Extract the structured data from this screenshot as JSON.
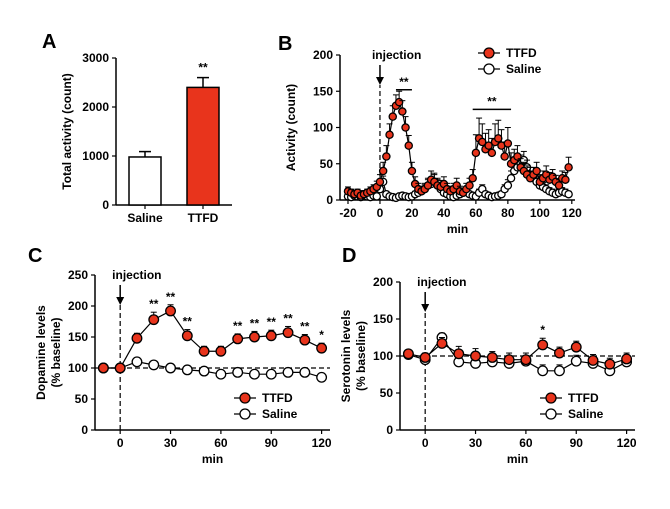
{
  "colors": {
    "ttfd": "#e8341c",
    "saline": "#ffffff",
    "stroke": "#000000"
  },
  "chart_data": [
    {
      "panel": "A",
      "type": "bar",
      "ylabel": "Total activity (count)",
      "ylim": [
        0,
        3000
      ],
      "yticks": [
        0,
        1000,
        2000,
        3000
      ],
      "categories": [
        "Saline",
        "TTFD"
      ],
      "values": [
        980,
        2400
      ],
      "errors": [
        110,
        200
      ],
      "annotations": [
        {
          "category": "TTFD",
          "text": "**"
        }
      ]
    },
    {
      "panel": "B",
      "type": "line",
      "xlabel": "min",
      "ylabel": "Activity (count)",
      "xlim": [
        -25,
        122
      ],
      "ylim": [
        0,
        200
      ],
      "xticks": [
        -20,
        0,
        20,
        40,
        60,
        80,
        100,
        120
      ],
      "yticks": [
        0,
        50,
        100,
        150,
        200
      ],
      "event": {
        "x": 0,
        "label": "injection"
      },
      "legend": {
        "position": "top-right",
        "entries": [
          "TTFD",
          "Saline"
        ]
      },
      "brackets": [
        {
          "x0": 10,
          "x1": 20,
          "y": 152,
          "text": "**"
        },
        {
          "x0": 58,
          "x1": 82,
          "y": 125,
          "text": "**"
        }
      ],
      "series": [
        {
          "name": "TTFD",
          "x": [
            -20,
            -18,
            -16,
            -14,
            -12,
            -10,
            -8,
            -6,
            -4,
            -2,
            0,
            2,
            4,
            6,
            8,
            10,
            12,
            14,
            16,
            18,
            20,
            22,
            24,
            26,
            28,
            30,
            32,
            34,
            36,
            38,
            40,
            42,
            44,
            46,
            48,
            50,
            52,
            54,
            56,
            58,
            60,
            62,
            64,
            66,
            68,
            70,
            72,
            74,
            76,
            78,
            80,
            82,
            84,
            86,
            88,
            90,
            92,
            94,
            96,
            98,
            100,
            102,
            104,
            106,
            108,
            110,
            112,
            114,
            116,
            118
          ],
          "values": [
            12,
            10,
            8,
            10,
            6,
            8,
            10,
            12,
            15,
            18,
            25,
            40,
            60,
            90,
            115,
            130,
            135,
            122,
            100,
            75,
            40,
            22,
            15,
            12,
            15,
            20,
            28,
            25,
            20,
            18,
            22,
            15,
            12,
            15,
            20,
            12,
            10,
            15,
            20,
            30,
            65,
            85,
            80,
            70,
            75,
            65,
            80,
            85,
            75,
            60,
            78,
            50,
            55,
            60,
            45,
            40,
            35,
            30,
            35,
            40,
            25,
            30,
            35,
            28,
            32,
            25,
            20,
            30,
            28,
            45
          ],
          "errors": [
            6,
            5,
            5,
            5,
            4,
            5,
            5,
            6,
            6,
            8,
            10,
            12,
            15,
            15,
            15,
            15,
            15,
            15,
            15,
            14,
            12,
            10,
            8,
            7,
            8,
            10,
            12,
            12,
            10,
            9,
            10,
            8,
            7,
            8,
            10,
            7,
            6,
            8,
            10,
            12,
            25,
            28,
            25,
            22,
            22,
            20,
            25,
            25,
            22,
            20,
            22,
            15,
            15,
            15,
            12,
            12,
            12,
            10,
            10,
            12,
            10,
            10,
            12,
            10,
            10,
            9,
            8,
            10,
            10,
            14
          ]
        },
        {
          "name": "Saline",
          "x": [
            -20,
            -18,
            -16,
            -14,
            -12,
            -10,
            -8,
            -6,
            -4,
            -2,
            0,
            2,
            4,
            6,
            8,
            10,
            12,
            14,
            16,
            18,
            20,
            22,
            24,
            26,
            28,
            30,
            32,
            34,
            36,
            38,
            40,
            42,
            44,
            46,
            48,
            50,
            52,
            54,
            56,
            58,
            60,
            62,
            64,
            66,
            68,
            70,
            72,
            74,
            76,
            78,
            80,
            82,
            84,
            86,
            88,
            90,
            92,
            94,
            96,
            98,
            100,
            102,
            104,
            106,
            108,
            110,
            112,
            114,
            116,
            118
          ],
          "values": [
            5,
            4,
            6,
            5,
            4,
            6,
            5,
            4,
            6,
            5,
            15,
            25,
            8,
            5,
            4,
            3,
            5,
            6,
            5,
            4,
            5,
            8,
            10,
            12,
            15,
            20,
            22,
            25,
            20,
            15,
            10,
            8,
            5,
            4,
            6,
            8,
            10,
            12,
            8,
            6,
            5,
            10,
            15,
            8,
            6,
            4,
            5,
            6,
            8,
            15,
            20,
            30,
            40,
            45,
            50,
            55,
            45,
            35,
            30,
            25,
            20,
            18,
            15,
            12,
            10,
            8,
            10,
            12,
            10,
            8
          ],
          "errors": [
            3,
            3,
            3,
            3,
            3,
            3,
            3,
            3,
            3,
            3,
            6,
            8,
            4,
            3,
            3,
            3,
            3,
            3,
            3,
            3,
            3,
            4,
            5,
            5,
            6,
            8,
            8,
            10,
            8,
            6,
            5,
            4,
            3,
            3,
            3,
            4,
            5,
            5,
            4,
            4,
            3,
            5,
            6,
            4,
            3,
            3,
            3,
            3,
            4,
            6,
            8,
            10,
            12,
            12,
            12,
            12,
            10,
            10,
            8,
            8,
            7,
            6,
            6,
            5,
            5,
            4,
            5,
            5,
            5,
            4
          ]
        }
      ]
    },
    {
      "panel": "C",
      "type": "line",
      "xlabel": "min",
      "ylabel": [
        "Dopamine levels",
        "(% baseline)"
      ],
      "xlim": [
        -15,
        125
      ],
      "ylim": [
        0,
        250
      ],
      "xticks": [
        0,
        30,
        60,
        90,
        120
      ],
      "yticks": [
        0,
        50,
        100,
        150,
        200,
        250
      ],
      "baseline": 100,
      "event": {
        "x": 0,
        "label": "injection"
      },
      "legend": {
        "position": "bottom-right",
        "entries": [
          "TTFD",
          "Saline"
        ]
      },
      "series": [
        {
          "name": "TTFD",
          "x": [
            -10,
            0,
            10,
            20,
            30,
            40,
            50,
            60,
            70,
            80,
            90,
            100,
            110,
            120
          ],
          "values": [
            100,
            100,
            148,
            178,
            192,
            152,
            127,
            127,
            147,
            150,
            152,
            157,
            145,
            132
          ],
          "errors": [
            4,
            5,
            8,
            12,
            10,
            10,
            8,
            8,
            8,
            9,
            9,
            10,
            9,
            8
          ]
        },
        {
          "name": "Saline",
          "x": [
            -10,
            0,
            10,
            20,
            30,
            40,
            50,
            60,
            70,
            80,
            90,
            100,
            110,
            120
          ],
          "values": [
            100,
            100,
            110,
            105,
            100,
            97,
            95,
            90,
            93,
            90,
            90,
            93,
            93,
            85
          ],
          "errors": [
            3,
            3,
            5,
            5,
            5,
            4,
            4,
            5,
            5,
            5,
            5,
            5,
            5,
            5
          ]
        }
      ],
      "stars": [
        {
          "x": 20,
          "text": "**"
        },
        {
          "x": 30,
          "text": "**"
        },
        {
          "x": 40,
          "text": "**"
        },
        {
          "x": 70,
          "text": "**"
        },
        {
          "x": 80,
          "text": "**"
        },
        {
          "x": 90,
          "text": "**"
        },
        {
          "x": 100,
          "text": "**"
        },
        {
          "x": 110,
          "text": "**"
        },
        {
          "x": 120,
          "text": "*"
        }
      ]
    },
    {
      "panel": "D",
      "type": "line",
      "xlabel": "min",
      "ylabel": [
        "Serotonin levels",
        "(% baseline)"
      ],
      "xlim": [
        -15,
        125
      ],
      "ylim": [
        0,
        200
      ],
      "xticks": [
        0,
        30,
        60,
        90,
        120
      ],
      "yticks": [
        0,
        50,
        100,
        150,
        200
      ],
      "baseline": 100,
      "event": {
        "x": 0,
        "label": "injection"
      },
      "legend": {
        "position": "bottom-right",
        "entries": [
          "TTFD",
          "Saline"
        ]
      },
      "series": [
        {
          "name": "TTFD",
          "x": [
            -10,
            0,
            10,
            20,
            30,
            40,
            50,
            60,
            70,
            80,
            90,
            100,
            110,
            120
          ],
          "values": [
            103,
            98,
            117,
            103,
            100,
            98,
            95,
            95,
            115,
            104,
            112,
            94,
            89,
            96
          ],
          "errors": [
            5,
            6,
            8,
            10,
            10,
            8,
            9,
            9,
            9,
            8,
            8,
            8,
            8,
            8
          ]
        },
        {
          "name": "Saline",
          "x": [
            -10,
            0,
            10,
            20,
            30,
            40,
            50,
            60,
            70,
            80,
            90,
            100,
            110,
            120
          ],
          "values": [
            102,
            95,
            125,
            92,
            90,
            92,
            90,
            93,
            80,
            80,
            93,
            90,
            80,
            92
          ],
          "errors": [
            4,
            5,
            6,
            8,
            8,
            7,
            7,
            7,
            8,
            8,
            8,
            8,
            8,
            8
          ]
        }
      ],
      "stars": [
        {
          "x": 70,
          "text": "*"
        }
      ]
    }
  ]
}
